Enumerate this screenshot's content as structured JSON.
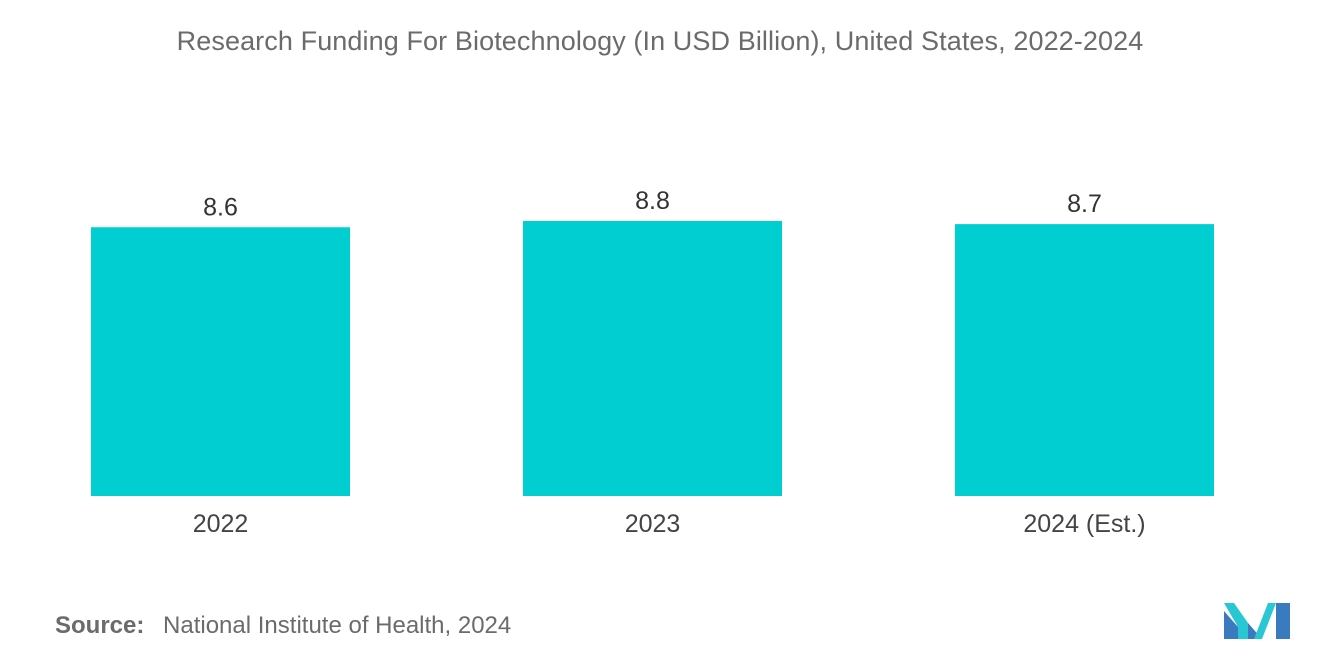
{
  "chart_data": {
    "type": "bar",
    "title": "Research Funding For Biotechnology (In USD Billion), United States, 2022-2024",
    "categories": [
      "2022",
      "2023",
      "2024 (Est.)"
    ],
    "values": [
      8.6,
      8.8,
      8.7
    ],
    "data_labels": [
      "8.6",
      "8.8",
      "8.7"
    ],
    "xlabel": "",
    "ylabel": "",
    "ylim": [
      0,
      8.8
    ],
    "grid": false,
    "legend": "none",
    "bar_color": "#00CED1"
  },
  "source": {
    "label": "Source:",
    "text": "National Institute of Health, 2024"
  },
  "colors": {
    "title": "#6b6b6b",
    "bar": "#00CED1",
    "logo_dark": "#3a7bbf",
    "logo_light": "#28c7d3"
  },
  "logo": {
    "icon": "mordor-logo-icon"
  }
}
